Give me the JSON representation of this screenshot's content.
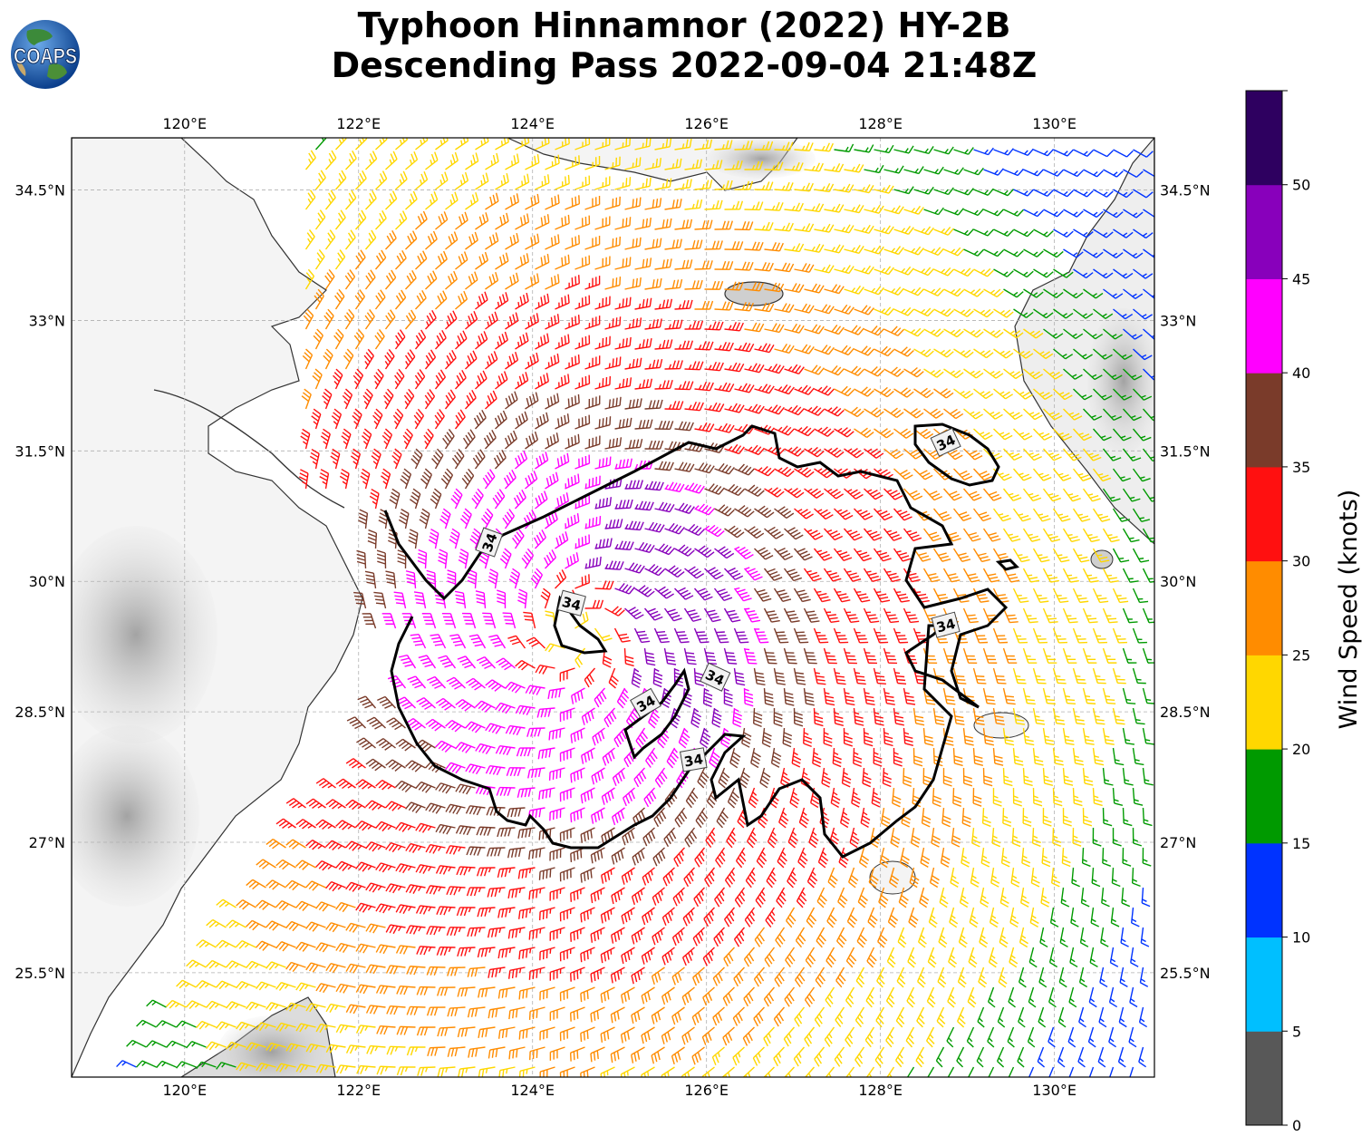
{
  "title": {
    "line1": "Typhoon Hinnamnor (2022) HY-2B",
    "line2": "Descending Pass 2022-09-04 21:48Z"
  },
  "logo": {
    "text": "COAPS",
    "icon": "globe-icon"
  },
  "map": {
    "lon_range": [
      118.7,
      131.15
    ],
    "lat_range": [
      24.3,
      35.1
    ],
    "lon_ticks": [
      {
        "value": 120,
        "label": "120°E"
      },
      {
        "value": 122,
        "label": "122°E"
      },
      {
        "value": 124,
        "label": "124°E"
      },
      {
        "value": 126,
        "label": "126°E"
      },
      {
        "value": 128,
        "label": "128°E"
      },
      {
        "value": 130,
        "label": "130°E"
      }
    ],
    "lat_ticks": [
      {
        "value": 34.5,
        "label": "34.5°N"
      },
      {
        "value": 33,
        "label": "33°N"
      },
      {
        "value": 31.5,
        "label": "31.5°N"
      },
      {
        "value": 30,
        "label": "30°N"
      },
      {
        "value": 28.5,
        "label": "28.5°N"
      },
      {
        "value": 27,
        "label": "27°N"
      },
      {
        "value": 25.5,
        "label": "25.5°N"
      }
    ],
    "gridlines": true,
    "storm_center": {
      "lon": 124.5,
      "lat": 29.4
    },
    "contour_label": "34",
    "contour_label_positions": [
      {
        "lon": 123.5,
        "lat": 30.45
      },
      {
        "lon": 124.45,
        "lat": 29.75
      },
      {
        "lon": 125.3,
        "lat": 28.6
      },
      {
        "lon": 126.1,
        "lat": 28.9
      },
      {
        "lon": 125.85,
        "lat": 27.95
      },
      {
        "lon": 128.75,
        "lat": 31.6
      },
      {
        "lon": 128.75,
        "lat": 29.5
      }
    ]
  },
  "colorbar": {
    "label": "Wind Speed (knots)",
    "ticks": [
      "0",
      "5",
      "10",
      "15",
      "20",
      "25",
      "30",
      "35",
      "40",
      "45",
      "50"
    ],
    "colors": [
      "#585858",
      "#00bfff",
      "#0033ff",
      "#009a00",
      "#ffd700",
      "#ff8c00",
      "#ff1010",
      "#7a3b2a",
      "#ff00ff",
      "#8800bb",
      "#2e0060"
    ],
    "max": 55
  }
}
